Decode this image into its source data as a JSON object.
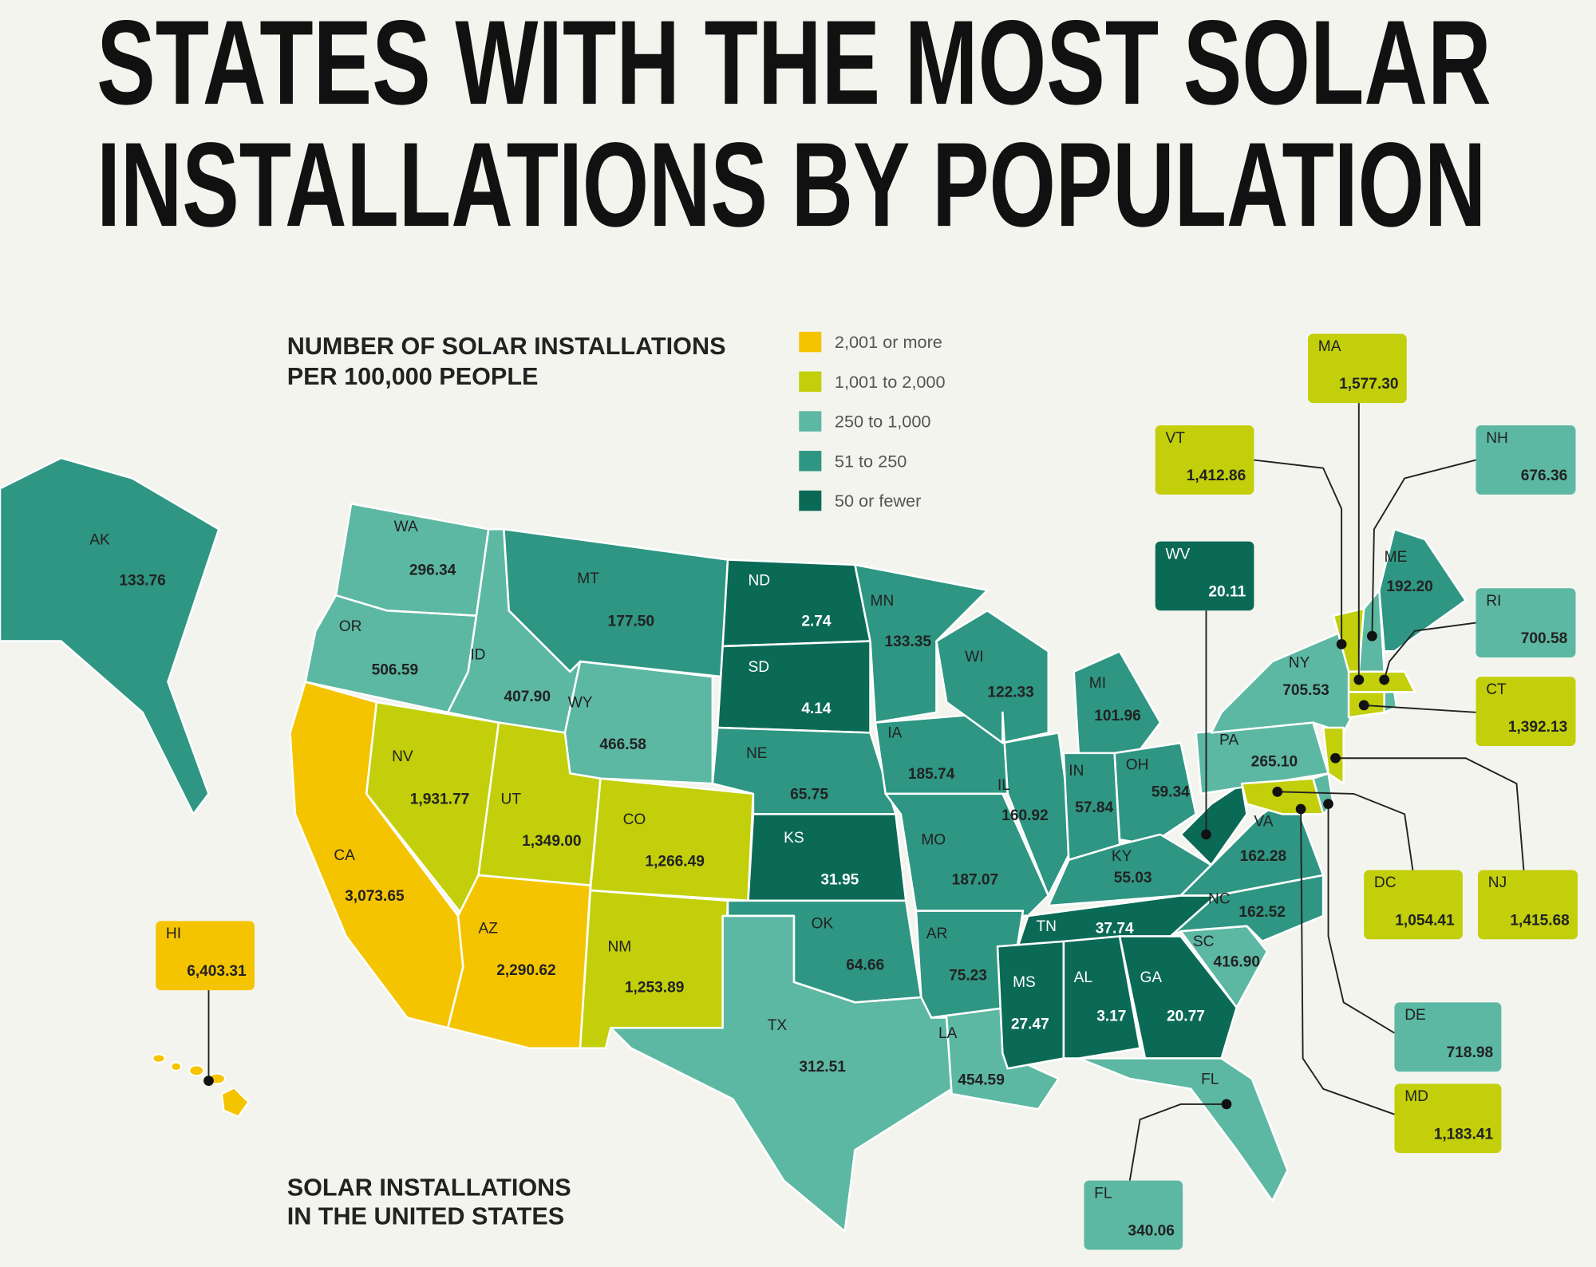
{
  "title": [
    "STATES WITH THE MOST SOLAR",
    "INSTALLATIONS BY POPULATION"
  ],
  "legend": {
    "title": [
      "NUMBER OF SOLAR INSTALLATIONS",
      "PER 100,000 PEOPLE"
    ],
    "items": [
      {
        "label": "2,001 or more",
        "color": "#f5c400"
      },
      {
        "label": "1,001 to 2,000",
        "color": "#c2cf0a"
      },
      {
        "label": "250 to 1,000",
        "color": "#5cb8a2"
      },
      {
        "label": "51 to 250",
        "color": "#2e9683"
      },
      {
        "label": "50 or fewer",
        "color": "#0b6a56"
      }
    ]
  },
  "caption": [
    "SOLAR INSTALLATIONS",
    "IN THE UNITED STATES"
  ],
  "states": [
    {
      "abbr": "AK",
      "value": 133.76,
      "color": "#2e9683"
    },
    {
      "abbr": "WA",
      "value": 296.34,
      "color": "#5cb8a2"
    },
    {
      "abbr": "OR",
      "value": 506.59,
      "color": "#5cb8a2"
    },
    {
      "abbr": "CA",
      "value": 3073.65,
      "value_label": "3,073.65",
      "color": "#f5c400"
    },
    {
      "abbr": "NV",
      "value": 1931.77,
      "value_label": "1,931.77",
      "color": "#c2cf0a"
    },
    {
      "abbr": "ID",
      "value": 407.9,
      "value_label": "407.90",
      "color": "#5cb8a2"
    },
    {
      "abbr": "MT",
      "value": 177.5,
      "value_label": "177.50",
      "color": "#2e9683"
    },
    {
      "abbr": "WY",
      "value": 466.58,
      "color": "#5cb8a2"
    },
    {
      "abbr": "UT",
      "value": 1349,
      "value_label": "1,349.00",
      "color": "#c2cf0a"
    },
    {
      "abbr": "CO",
      "value": 1266.49,
      "value_label": "1,266.49",
      "color": "#c2cf0a"
    },
    {
      "abbr": "AZ",
      "value": 2290.62,
      "value_label": "2,290.62",
      "color": "#f5c400"
    },
    {
      "abbr": "NM",
      "value": 1253.89,
      "value_label": "1,253.89",
      "color": "#c2cf0a"
    },
    {
      "abbr": "ND",
      "value": 2.74,
      "color": "#0b6a56"
    },
    {
      "abbr": "SD",
      "value": 4.14,
      "color": "#0b6a56"
    },
    {
      "abbr": "NE",
      "value": 65.75,
      "color": "#2e9683"
    },
    {
      "abbr": "KS",
      "value": 31.95,
      "color": "#0b6a56"
    },
    {
      "abbr": "OK",
      "value": 64.66,
      "color": "#2e9683"
    },
    {
      "abbr": "TX",
      "value": 312.51,
      "color": "#5cb8a2"
    },
    {
      "abbr": "MN",
      "value": 133.35,
      "color": "#2e9683"
    },
    {
      "abbr": "IA",
      "value": 185.74,
      "color": "#2e9683"
    },
    {
      "abbr": "MO",
      "value": 187.07,
      "color": "#2e9683"
    },
    {
      "abbr": "AR",
      "value": 75.23,
      "color": "#2e9683"
    },
    {
      "abbr": "LA",
      "value": 454.59,
      "color": "#5cb8a2"
    },
    {
      "abbr": "WI",
      "value": 122.33,
      "color": "#2e9683"
    },
    {
      "abbr": "IL",
      "value": 160.92,
      "color": "#2e9683"
    },
    {
      "abbr": "MI",
      "value": 101.96,
      "color": "#2e9683"
    },
    {
      "abbr": "IN",
      "value": 57.84,
      "color": "#2e9683"
    },
    {
      "abbr": "OH",
      "value": 59.34,
      "color": "#2e9683"
    },
    {
      "abbr": "KY",
      "value": 55.03,
      "color": "#2e9683"
    },
    {
      "abbr": "TN",
      "value": 37.74,
      "color": "#0b6a56"
    },
    {
      "abbr": "MS",
      "value": 27.47,
      "color": "#0b6a56"
    },
    {
      "abbr": "AL",
      "value": 3.17,
      "color": "#0b6a56"
    },
    {
      "abbr": "GA",
      "value": 20.77,
      "color": "#0b6a56"
    },
    {
      "abbr": "FL",
      "value": 340.06,
      "color": "#5cb8a2"
    },
    {
      "abbr": "SC",
      "value": 416.9,
      "value_label": "416.90",
      "color": "#5cb8a2"
    },
    {
      "abbr": "NC",
      "value": 162.52,
      "color": "#2e9683"
    },
    {
      "abbr": "VA",
      "value": 162.28,
      "color": "#2e9683"
    },
    {
      "abbr": "WV",
      "value": 20.11,
      "color": "#0b6a56"
    },
    {
      "abbr": "PA",
      "value": 265.1,
      "value_label": "265.10",
      "color": "#5cb8a2"
    },
    {
      "abbr": "NY",
      "value": 705.53,
      "color": "#5cb8a2"
    },
    {
      "abbr": "ME",
      "value": 192.2,
      "value_label": "192.20",
      "color": "#2e9683"
    },
    {
      "abbr": "VT",
      "value": 1412.86,
      "value_label": "1,412.86",
      "color": "#c2cf0a"
    },
    {
      "abbr": "NH",
      "value": 676.36,
      "color": "#5cb8a2"
    },
    {
      "abbr": "MA",
      "value": 1577.3,
      "value_label": "1,577.30",
      "color": "#c2cf0a"
    },
    {
      "abbr": "RI",
      "value": 700.58,
      "color": "#5cb8a2"
    },
    {
      "abbr": "CT",
      "value": 1392.13,
      "value_label": "1,392.13",
      "color": "#c2cf0a"
    },
    {
      "abbr": "NJ",
      "value": 1415.68,
      "value_label": "1,415.68",
      "color": "#c2cf0a"
    },
    {
      "abbr": "DE",
      "value": 718.98,
      "color": "#5cb8a2"
    },
    {
      "abbr": "MD",
      "value": 1183.41,
      "value_label": "1,183.41",
      "color": "#c2cf0a"
    },
    {
      "abbr": "DC",
      "value": 1054.41,
      "value_label": "1,054.41",
      "color": "#c2cf0a"
    },
    {
      "abbr": "HI",
      "value": 6403.31,
      "value_label": "6,403.31",
      "color": "#f5c400"
    }
  ]
}
